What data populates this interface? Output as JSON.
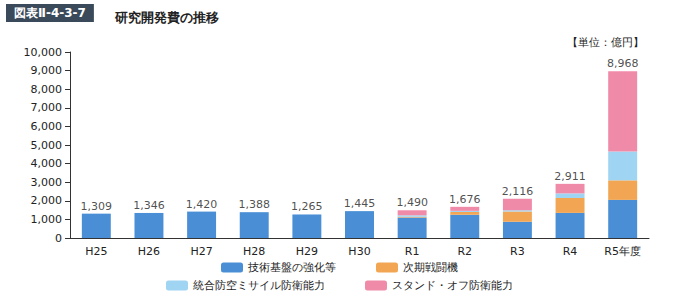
{
  "chart_data": {
    "type": "bar",
    "figure_number": "図表Ⅱ-4-3-7",
    "title": "研究開発費の推移",
    "unit_label": "【単位：億円】",
    "stacked": true,
    "grid": false,
    "legend": "bottom",
    "categories": [
      "H25",
      "H26",
      "H27",
      "H28",
      "H29",
      "H30",
      "R1",
      "R2",
      "R3",
      "R4",
      "R5年度"
    ],
    "series": [
      {
        "name": "技術基盤の強化等",
        "color": "#4a8fd6",
        "values": [
          1309,
          1346,
          1420,
          1388,
          1265,
          1445,
          1100,
          1250,
          870,
          1350,
          2050
        ]
      },
      {
        "name": "次期戦闘機",
        "color": "#f2a552",
        "values": [
          0,
          0,
          0,
          0,
          0,
          0,
          40,
          150,
          560,
          800,
          1050
        ]
      },
      {
        "name": "統合防空ミサイル防衛能力",
        "color": "#9fd4f2",
        "values": [
          0,
          0,
          0,
          0,
          0,
          0,
          80,
          60,
          60,
          250,
          1550
        ]
      },
      {
        "name": "スタンド・オフ防衛能力",
        "color": "#f08aa9",
        "values": [
          0,
          0,
          0,
          0,
          0,
          0,
          270,
          216,
          626,
          511,
          4318
        ]
      }
    ],
    "totals": [
      1309,
      1346,
      1420,
      1388,
      1265,
      1445,
      1490,
      1676,
      2116,
      2911,
      8968
    ],
    "total_labels": [
      "1,309",
      "1,346",
      "1,420",
      "1,388",
      "1,265",
      "1,445",
      "1,490",
      "1,676",
      "2,116",
      "2,911",
      "8,968"
    ],
    "ylim": [
      0,
      10000
    ],
    "yticks": [
      0,
      {
        "value": 1000,
        "label": "1,000"
      },
      {
        "value": 2000,
        "label": "2,000"
      },
      {
        "value": 3000,
        "label": "3,000"
      },
      {
        "value": 4000,
        "label": "4,000"
      },
      {
        "value": 5000,
        "label": "5,000"
      },
      {
        "value": 6000,
        "label": "6,000"
      },
      {
        "value": 7000,
        "label": "7,000"
      },
      {
        "value": 8000,
        "label": "8,000"
      },
      {
        "value": 9000,
        "label": "9,000"
      },
      {
        "value": 10000,
        "label": "10,000"
      }
    ]
  }
}
